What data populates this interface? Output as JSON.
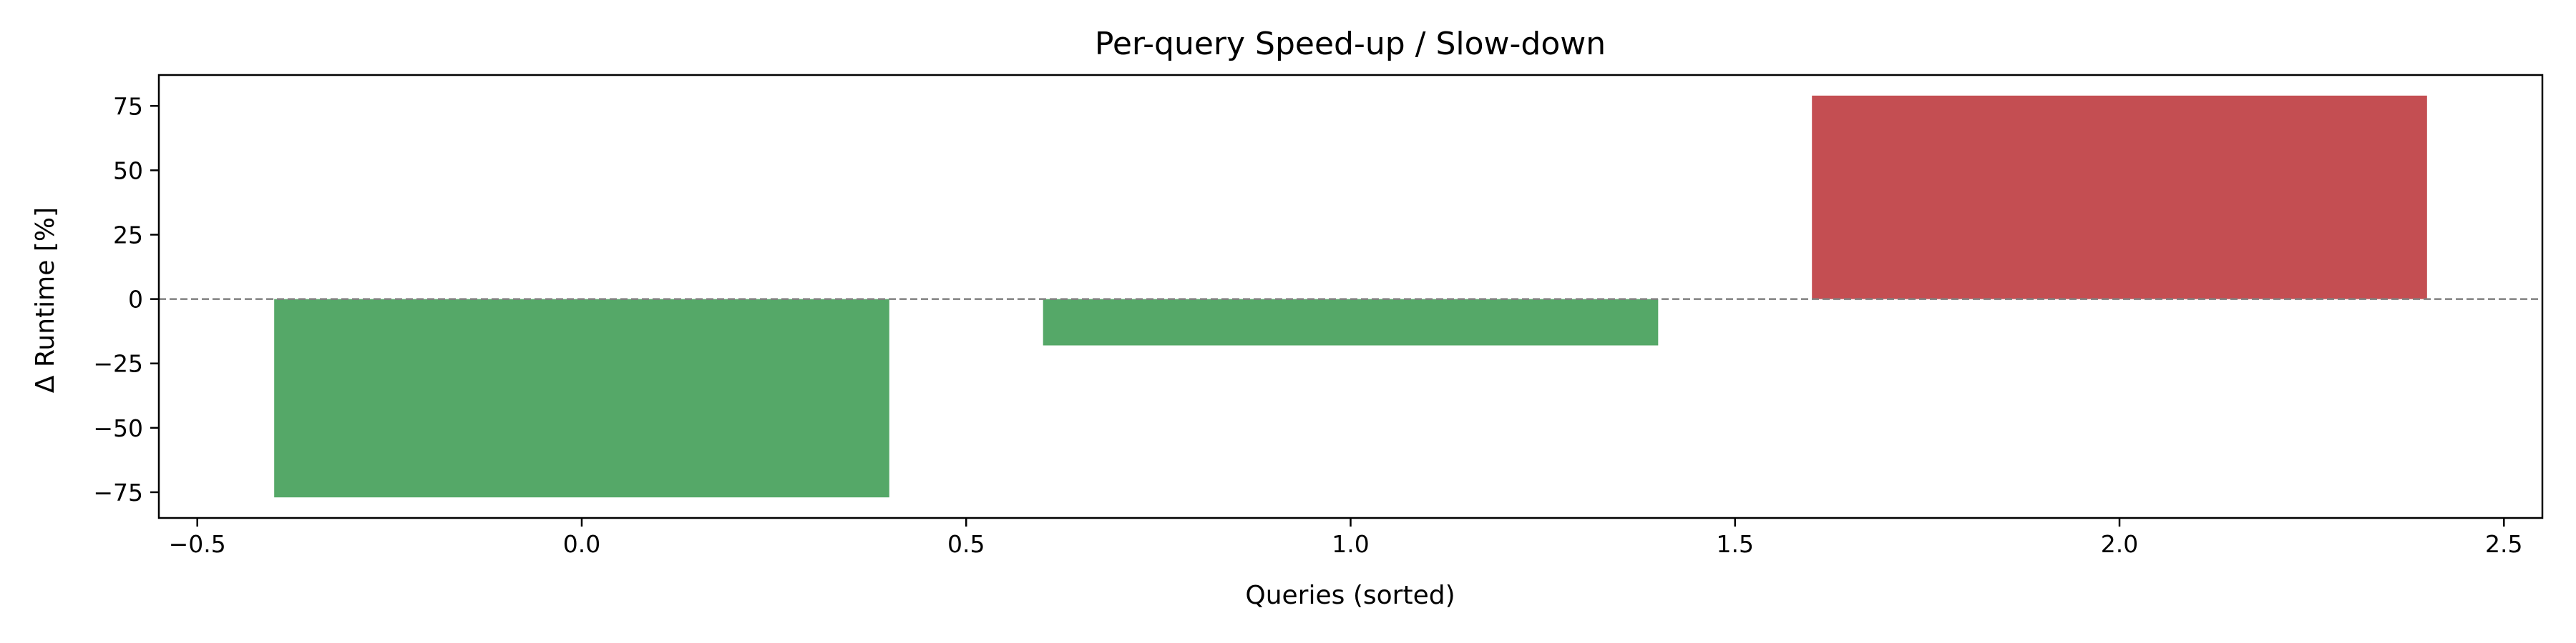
{
  "chart_data": {
    "type": "bar",
    "title": "Per-query Speed-up / Slow-down",
    "xlabel": "Queries (sorted)",
    "ylabel": "Δ Runtime [%]",
    "x": [
      0,
      1,
      2
    ],
    "values": [
      -77,
      -18,
      79
    ],
    "bar_width": 0.8,
    "bar_colors": [
      "#55a868",
      "#55a868",
      "#c44e52"
    ],
    "xlim": [
      -0.55,
      2.55
    ],
    "ylim": [
      -85,
      87
    ],
    "xticks": [
      -0.5,
      0.0,
      0.5,
      1.0,
      1.5,
      2.0,
      2.5
    ],
    "xtick_labels": [
      "−0.5",
      "0.0",
      "0.5",
      "1.0",
      "1.5",
      "2.0",
      "2.5"
    ],
    "yticks": [
      75,
      50,
      25,
      0,
      -25,
      -50,
      -75
    ],
    "ytick_labels": [
      "75",
      "50",
      "25",
      "0",
      "−25",
      "−50",
      "−75"
    ],
    "reference_line": {
      "y": 0,
      "style": "dashed",
      "color": "#808080"
    },
    "grid": false,
    "legend": "none"
  }
}
